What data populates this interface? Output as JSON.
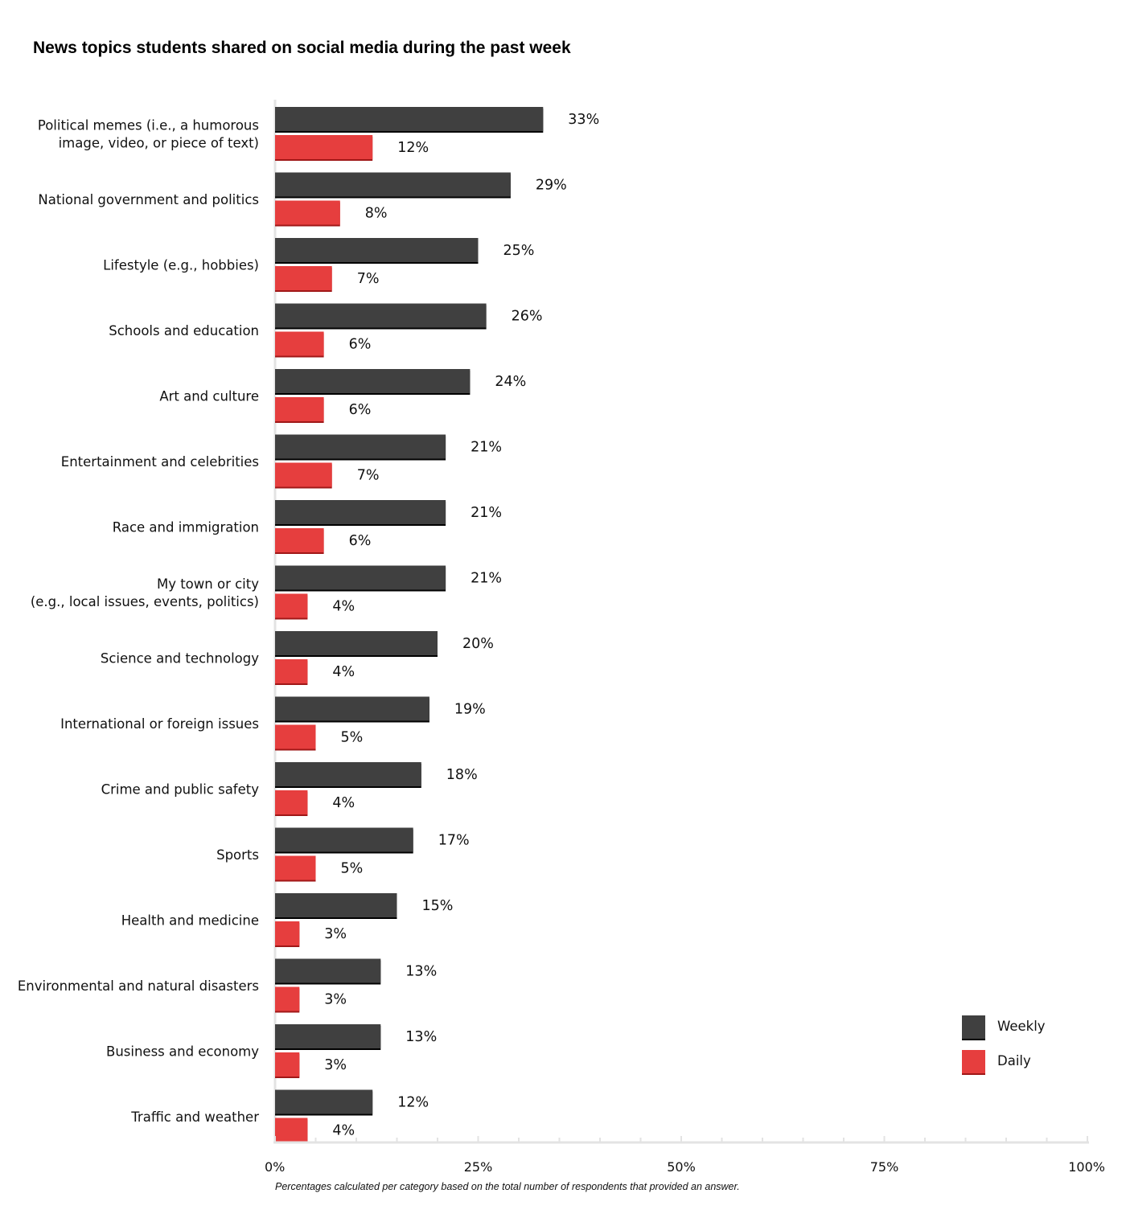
{
  "chart_data": {
    "type": "bar",
    "orientation": "horizontal",
    "title": "News topics students shared on social media during the past week",
    "footnote": "Percentages calculated per category based on the total number of respondents that provided an answer.",
    "categories": [
      [
        "Political memes (i.e., a humorous",
        "image, video, or piece of text)"
      ],
      [
        "National government and politics"
      ],
      [
        "Lifestyle (e.g., hobbies)"
      ],
      [
        "Schools and education"
      ],
      [
        "Art and culture"
      ],
      [
        "Entertainment and celebrities"
      ],
      [
        "Race and immigration"
      ],
      [
        "My town or city",
        "(e.g., local issues, events, politics)"
      ],
      [
        "Science and technology"
      ],
      [
        "International or foreign issues"
      ],
      [
        "Crime and public safety"
      ],
      [
        "Sports"
      ],
      [
        "Health and medicine"
      ],
      [
        "Environmental and natural disasters"
      ],
      [
        "Business and economy"
      ],
      [
        "Traffic and weather"
      ]
    ],
    "series": [
      {
        "name": "Weekly",
        "color": "#404040",
        "values": [
          33,
          29,
          25,
          26,
          24,
          21,
          21,
          21,
          20,
          19,
          18,
          17,
          15,
          13,
          13,
          12
        ]
      },
      {
        "name": "Daily",
        "color": "#e63e3e",
        "values": [
          12,
          8,
          7,
          6,
          6,
          7,
          6,
          4,
          4,
          5,
          4,
          5,
          3,
          3,
          3,
          4
        ]
      }
    ],
    "value_labels": {
      "Weekly": [
        "33%",
        "29%",
        "25%",
        "26%",
        "24%",
        "21%",
        "21%",
        "21%",
        "20%",
        "19%",
        "18%",
        "17%",
        "15%",
        "13%",
        "13%",
        "12%"
      ],
      "Daily": [
        "12%",
        "8%",
        "7%",
        "6%",
        "6%",
        "7%",
        "6%",
        "4%",
        "4%",
        "5%",
        "4%",
        "5%",
        "3%",
        "3%",
        "3%",
        "4%"
      ]
    },
    "xlim": [
      0,
      100
    ],
    "x_ticks": [
      0,
      25,
      50,
      75,
      100
    ],
    "x_tick_labels": [
      "0%",
      "25%",
      "50%",
      "75%",
      "100%"
    ],
    "x_minor_step": 5,
    "grid": false,
    "legend_position": "bottom-right"
  }
}
